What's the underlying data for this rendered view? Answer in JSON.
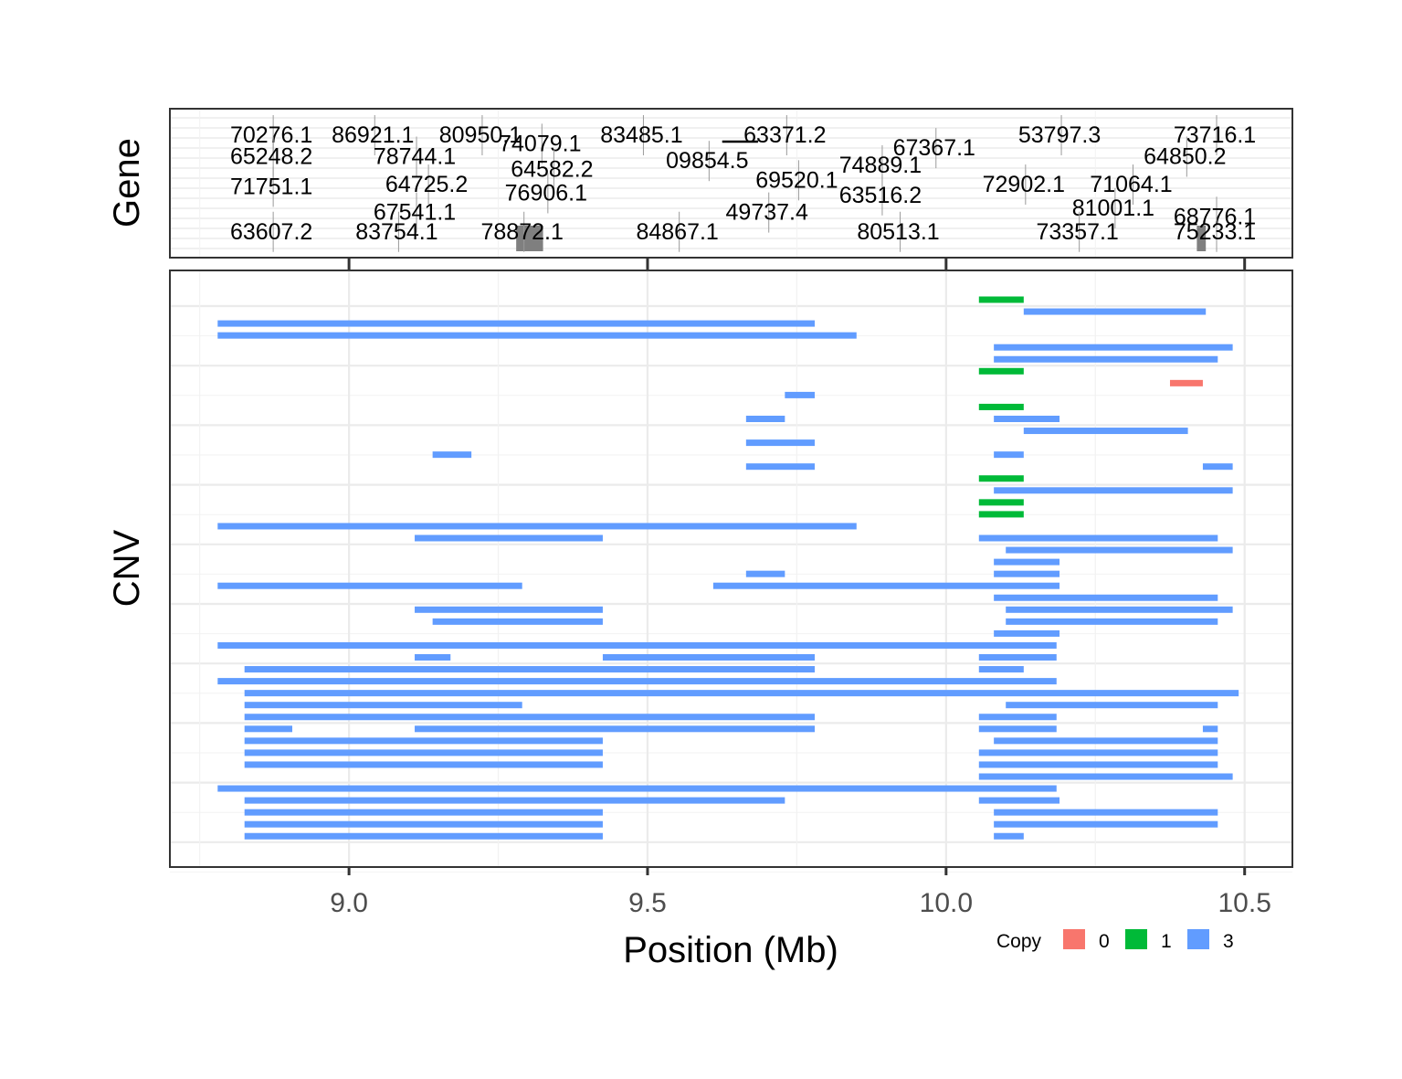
{
  "chart_data": {
    "type": "genomic-track",
    "xlabel": "Position (Mb)",
    "xlim": [
      8.7,
      10.58
    ],
    "xticks": [
      "9.0",
      "9.5",
      "10.0",
      "10.5"
    ],
    "colors": {
      "0": "#F8766D",
      "1": "#00BA38",
      "3": "#619CFF",
      "gene": "#7f7f7f"
    },
    "gene_panel": {
      "ylabel": "Gene",
      "genes": [
        {
          "label": "70276.1",
          "x": 8.87,
          "row": 0
        },
        {
          "label": "86921.1",
          "x": 9.04,
          "row": 0
        },
        {
          "label": "80950.1",
          "x": 9.22,
          "row": 0
        },
        {
          "label": "83485.1",
          "x": 9.49,
          "row": 0
        },
        {
          "label": "63371.2",
          "x": 9.73,
          "row": 0
        },
        {
          "label": "53797.3",
          "x": 10.19,
          "row": 0
        },
        {
          "label": "73716.1",
          "x": 10.45,
          "row": 0
        },
        {
          "label": "74079.1",
          "x": 9.32,
          "row": 0.4
        },
        {
          "label": "67367.1",
          "x": 9.98,
          "row": 0.6
        },
        {
          "label": "65248.2",
          "x": 8.87,
          "row": 1
        },
        {
          "label": "78744.1",
          "x": 9.11,
          "row": 1
        },
        {
          "label": "09854.5",
          "x": 9.6,
          "row": 1.2
        },
        {
          "label": "64850.2",
          "x": 10.4,
          "row": 1
        },
        {
          "label": "74889.1",
          "x": 9.89,
          "row": 1.4
        },
        {
          "label": "64582.2",
          "x": 9.34,
          "row": 1.6
        },
        {
          "label": "71751.1",
          "x": 8.87,
          "row": 2.4
        },
        {
          "label": "64725.2",
          "x": 9.13,
          "row": 2.3
        },
        {
          "label": "69520.1",
          "x": 9.75,
          "row": 2.1
        },
        {
          "label": "72902.1",
          "x": 10.13,
          "row": 2.3
        },
        {
          "label": "71064.1",
          "x": 10.31,
          "row": 2.3
        },
        {
          "label": "76906.1",
          "x": 9.33,
          "row": 2.7
        },
        {
          "label": "63516.2",
          "x": 9.89,
          "row": 2.8
        },
        {
          "label": "81001.1",
          "x": 10.28,
          "row": 3.4
        },
        {
          "label": "67541.1",
          "x": 9.11,
          "row": 3.6
        },
        {
          "label": "49737.4",
          "x": 9.7,
          "row": 3.6
        },
        {
          "label": "68776.1",
          "x": 10.45,
          "row": 3.8
        },
        {
          "label": "63607.2",
          "x": 8.87,
          "row": 4.5
        },
        {
          "label": "83754.1",
          "x": 9.08,
          "row": 4.5
        },
        {
          "label": "78872.1",
          "x": 9.29,
          "row": 4.5
        },
        {
          "label": "84867.1",
          "x": 9.55,
          "row": 4.5
        },
        {
          "label": "80513.1",
          "x": 9.92,
          "row": 4.5
        },
        {
          "label": "73357.1",
          "x": 10.22,
          "row": 4.5
        },
        {
          "label": "75233.1",
          "x": 10.45,
          "row": 4.5
        }
      ],
      "blocks": [
        {
          "start": 9.28,
          "end": 9.325
        },
        {
          "start": 10.42,
          "end": 10.435
        }
      ]
    },
    "cnv_panel": {
      "ylabel": "CNV",
      "legend": {
        "title": "Copy",
        "entries": [
          "0",
          "1",
          "3"
        ],
        "position": "bottom-right"
      },
      "segments": [
        {
          "row": 0,
          "start": 10.055,
          "end": 10.13,
          "copy": "1"
        },
        {
          "row": 1,
          "start": 10.13,
          "end": 10.435,
          "copy": "3"
        },
        {
          "row": 2,
          "start": 8.78,
          "end": 9.78,
          "copy": "3"
        },
        {
          "row": 3,
          "start": 8.78,
          "end": 9.85,
          "copy": "3"
        },
        {
          "row": 4,
          "start": 10.08,
          "end": 10.48,
          "copy": "3"
        },
        {
          "row": 5,
          "start": 10.08,
          "end": 10.455,
          "copy": "3"
        },
        {
          "row": 6,
          "start": 10.055,
          "end": 10.13,
          "copy": "1"
        },
        {
          "row": 7,
          "start": 10.375,
          "end": 10.43,
          "copy": "0"
        },
        {
          "row": 8,
          "start": 9.73,
          "end": 9.78,
          "copy": "3"
        },
        {
          "row": 9,
          "start": 10.055,
          "end": 10.13,
          "copy": "1"
        },
        {
          "row": 10,
          "start": 9.665,
          "end": 9.73,
          "copy": "3"
        },
        {
          "row": 10,
          "start": 10.08,
          "end": 10.19,
          "copy": "3"
        },
        {
          "row": 11,
          "start": 10.13,
          "end": 10.405,
          "copy": "3"
        },
        {
          "row": 12,
          "start": 9.665,
          "end": 9.78,
          "copy": "3"
        },
        {
          "row": 13,
          "start": 9.14,
          "end": 9.205,
          "copy": "3"
        },
        {
          "row": 13,
          "start": 10.08,
          "end": 10.13,
          "copy": "3"
        },
        {
          "row": 14,
          "start": 9.665,
          "end": 9.78,
          "copy": "3"
        },
        {
          "row": 14,
          "start": 10.43,
          "end": 10.48,
          "copy": "3"
        },
        {
          "row": 15,
          "start": 10.055,
          "end": 10.13,
          "copy": "1"
        },
        {
          "row": 16,
          "start": 10.08,
          "end": 10.48,
          "copy": "3"
        },
        {
          "row": 17,
          "start": 10.055,
          "end": 10.13,
          "copy": "1"
        },
        {
          "row": 18,
          "start": 10.055,
          "end": 10.13,
          "copy": "1"
        },
        {
          "row": 19,
          "start": 8.78,
          "end": 9.85,
          "copy": "3"
        },
        {
          "row": 20,
          "start": 9.11,
          "end": 9.425,
          "copy": "3"
        },
        {
          "row": 20,
          "start": 10.055,
          "end": 10.455,
          "copy": "3"
        },
        {
          "row": 21,
          "start": 10.1,
          "end": 10.48,
          "copy": "3"
        },
        {
          "row": 22,
          "start": 10.08,
          "end": 10.19,
          "copy": "3"
        },
        {
          "row": 23,
          "start": 9.665,
          "end": 9.73,
          "copy": "3"
        },
        {
          "row": 23,
          "start": 10.08,
          "end": 10.19,
          "copy": "3"
        },
        {
          "row": 24,
          "start": 8.78,
          "end": 9.29,
          "copy": "3"
        },
        {
          "row": 24,
          "start": 9.61,
          "end": 10.19,
          "copy": "3"
        },
        {
          "row": 25,
          "start": 10.08,
          "end": 10.455,
          "copy": "3"
        },
        {
          "row": 26,
          "start": 9.11,
          "end": 9.425,
          "copy": "3"
        },
        {
          "row": 26,
          "start": 10.1,
          "end": 10.48,
          "copy": "3"
        },
        {
          "row": 27,
          "start": 9.14,
          "end": 9.425,
          "copy": "3"
        },
        {
          "row": 27,
          "start": 10.1,
          "end": 10.455,
          "copy": "3"
        },
        {
          "row": 28,
          "start": 10.08,
          "end": 10.19,
          "copy": "3"
        },
        {
          "row": 29,
          "start": 8.78,
          "end": 10.185,
          "copy": "3"
        },
        {
          "row": 30,
          "start": 9.11,
          "end": 9.17,
          "copy": "3"
        },
        {
          "row": 30,
          "start": 9.425,
          "end": 9.78,
          "copy": "3"
        },
        {
          "row": 30,
          "start": 10.055,
          "end": 10.185,
          "copy": "3"
        },
        {
          "row": 31,
          "start": 8.825,
          "end": 9.78,
          "copy": "3"
        },
        {
          "row": 31,
          "start": 10.055,
          "end": 10.13,
          "copy": "3"
        },
        {
          "row": 32,
          "start": 8.78,
          "end": 10.185,
          "copy": "3"
        },
        {
          "row": 33,
          "start": 8.825,
          "end": 10.49,
          "copy": "3"
        },
        {
          "row": 34,
          "start": 8.825,
          "end": 9.29,
          "copy": "3"
        },
        {
          "row": 34,
          "start": 10.1,
          "end": 10.455,
          "copy": "3"
        },
        {
          "row": 35,
          "start": 8.825,
          "end": 9.78,
          "copy": "3"
        },
        {
          "row": 35,
          "start": 10.055,
          "end": 10.185,
          "copy": "3"
        },
        {
          "row": 36,
          "start": 8.825,
          "end": 8.905,
          "copy": "3"
        },
        {
          "row": 36,
          "start": 9.11,
          "end": 9.78,
          "copy": "3"
        },
        {
          "row": 36,
          "start": 10.055,
          "end": 10.185,
          "copy": "3"
        },
        {
          "row": 36,
          "start": 10.43,
          "end": 10.455,
          "copy": "3"
        },
        {
          "row": 37,
          "start": 8.825,
          "end": 9.425,
          "copy": "3"
        },
        {
          "row": 37,
          "start": 10.08,
          "end": 10.455,
          "copy": "3"
        },
        {
          "row": 38,
          "start": 8.825,
          "end": 9.425,
          "copy": "3"
        },
        {
          "row": 38,
          "start": 10.055,
          "end": 10.455,
          "copy": "3"
        },
        {
          "row": 39,
          "start": 8.825,
          "end": 9.425,
          "copy": "3"
        },
        {
          "row": 39,
          "start": 10.055,
          "end": 10.455,
          "copy": "3"
        },
        {
          "row": 40,
          "start": 10.055,
          "end": 10.48,
          "copy": "3"
        },
        {
          "row": 41,
          "start": 8.78,
          "end": 10.185,
          "copy": "3"
        },
        {
          "row": 42,
          "start": 8.825,
          "end": 9.73,
          "copy": "3"
        },
        {
          "row": 42,
          "start": 10.055,
          "end": 10.19,
          "copy": "3"
        },
        {
          "row": 43,
          "start": 8.825,
          "end": 9.425,
          "copy": "3"
        },
        {
          "row": 43,
          "start": 10.08,
          "end": 10.455,
          "copy": "3"
        },
        {
          "row": 44,
          "start": 8.825,
          "end": 9.425,
          "copy": "3"
        },
        {
          "row": 44,
          "start": 10.08,
          "end": 10.455,
          "copy": "3"
        },
        {
          "row": 45,
          "start": 8.825,
          "end": 9.425,
          "copy": "3"
        },
        {
          "row": 45,
          "start": 10.08,
          "end": 10.13,
          "copy": "3"
        }
      ]
    }
  }
}
